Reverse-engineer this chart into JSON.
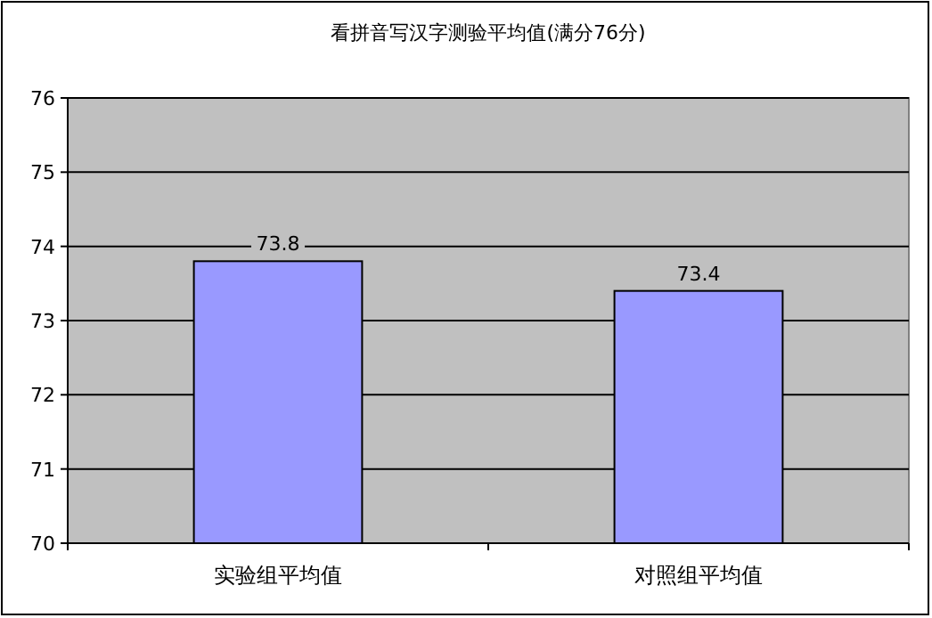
{
  "chart_data": {
    "type": "bar",
    "title": "看拼音写汉字测验平均值(满分76分)",
    "categories": [
      "实验组平均值",
      "对照组平均值"
    ],
    "values": [
      73.8,
      73.4
    ],
    "color": "#9999ff",
    "ylim": [
      70,
      76
    ],
    "yticks": [
      70,
      71,
      72,
      73,
      74,
      75,
      76
    ],
    "grid": "y",
    "data_labels": true
  }
}
